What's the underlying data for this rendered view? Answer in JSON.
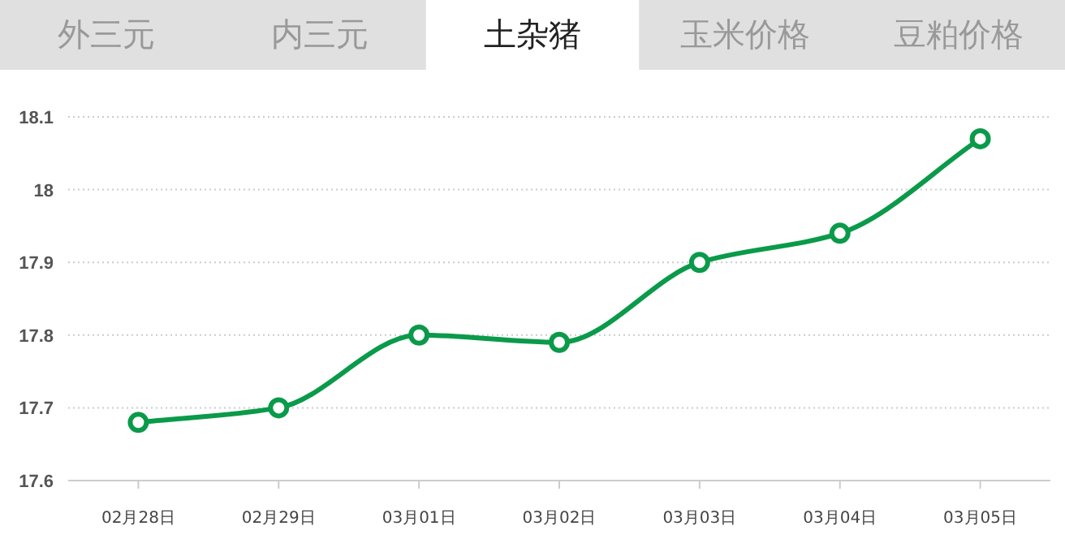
{
  "chart_data": {
    "type": "line",
    "title": "土杂猪",
    "annotations": [
      "外三元",
      "内三元",
      "玉米价格",
      "豆粕价格"
    ],
    "categories": [
      "02月28日",
      "02月29日",
      "03月01日",
      "03月02日",
      "03月03日",
      "03月04日",
      "03月05日"
    ],
    "series": [
      {
        "color": "#0a9a4a",
        "values": [
          17.68,
          17.7,
          17.8,
          17.79,
          17.9,
          17.94,
          18.07
        ]
      }
    ],
    "ylim": [
      17.6,
      18.1
    ],
    "yticks": [
      17.6,
      17.7,
      17.8,
      17.9,
      18,
      18.1
    ],
    "grid": "y",
    "marker": "circle",
    "line_style": "solid"
  }
}
